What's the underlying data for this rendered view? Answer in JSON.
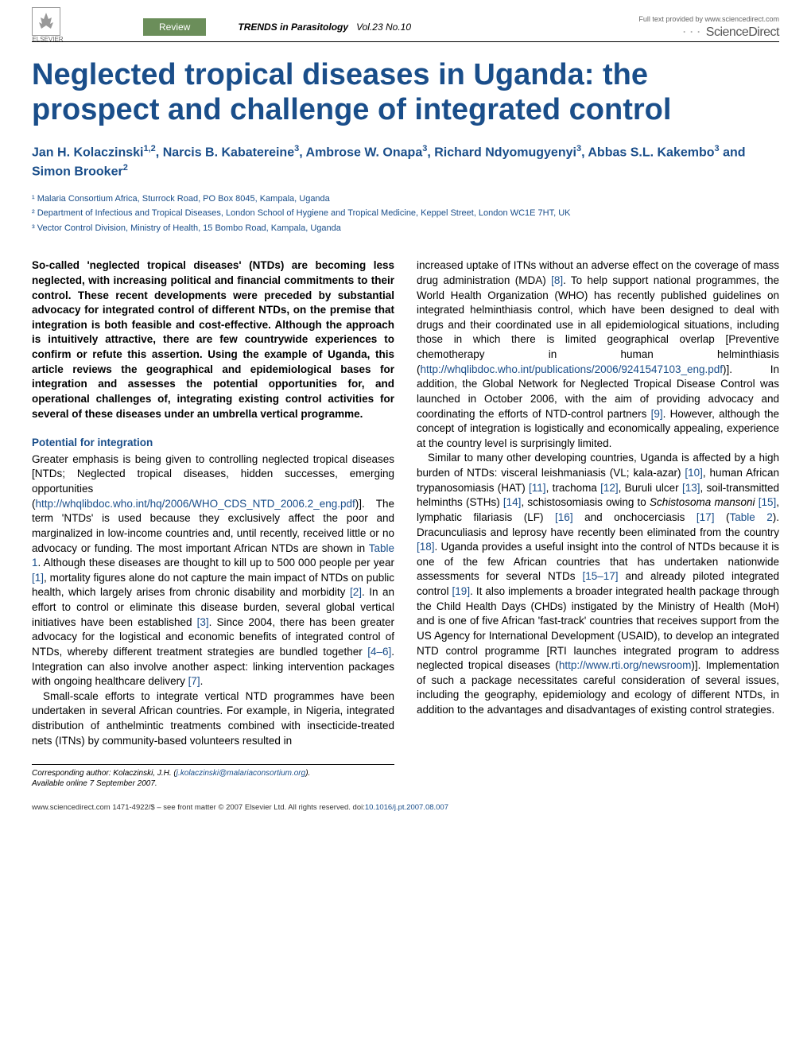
{
  "header": {
    "elsevier": "ELSEVIER",
    "review_label": "Review",
    "journal_name": "TRENDS in Parasitology",
    "journal_vol": "Vol.23 No.10",
    "sd_provided": "Full text provided by www.sciencedirect.com",
    "sd_name": "ScienceDirect"
  },
  "title": "Neglected tropical diseases in Uganda: the prospect and challenge of integrated control",
  "authors_html": "Jan H. Kolaczinski<sup>1,2</sup>, Narcis B. Kabatereine<sup>3</sup>, Ambrose W. Onapa<sup>3</sup>, Richard Ndyomugyenyi<sup>3</sup>, Abbas S.L. Kakembo<sup>3</sup> and Simon Brooker<sup>2</sup>",
  "affiliations": [
    "¹ Malaria Consortium Africa, Sturrock Road, PO Box 8045, Kampala, Uganda",
    "² Department of Infectious and Tropical Diseases, London School of Hygiene and Tropical Medicine, Keppel Street, London WC1E 7HT, UK",
    "³ Vector Control Division, Ministry of Health, 15 Bombo Road, Kampala, Uganda"
  ],
  "abstract": "So-called 'neglected tropical diseases' (NTDs) are becoming less neglected, with increasing political and financial commitments to their control. These recent developments were preceded by substantial advocacy for integrated control of different NTDs, on the premise that integration is both feasible and cost-effective. Although the approach is intuitively attractive, there are few countrywide experiences to confirm or refute this assertion. Using the example of Uganda, this article reviews the geographical and epidemiological bases for integration and assesses the potential opportunities for, and operational challenges of, integrating existing control activities for several of these diseases under an umbrella vertical programme.",
  "section1_head": "Potential for integration",
  "col1_p1_a": "Greater emphasis is being given to controlling neglected tropical diseases [NTDs; Neglected tropical diseases, hidden successes, emerging opportunities (",
  "col1_p1_link1": "http://whqlibdoc.who.int/hq/2006/WHO_CDS_NTD_2006.2_eng.pdf",
  "col1_p1_b": ")]. The term 'NTDs' is used because they exclusively affect the poor and marginalized in low-income countries and, until recently, received little or no advocacy or funding. The most important African NTDs are shown in ",
  "col1_p1_tab": "Table 1",
  "col1_p1_c": ". Although these diseases are thought to kill up to 500 000 people per year ",
  "col1_p1_r1": "[1]",
  "col1_p1_d": ", mortality figures alone do not capture the main impact of NTDs on public health, which largely arises from chronic disability and morbidity ",
  "col1_p1_r2": "[2]",
  "col1_p1_e": ". In an effort to control or eliminate this disease burden, several global vertical initiatives have been established ",
  "col1_p1_r3": "[3]",
  "col1_p1_f": ". Since 2004, there has been greater advocacy for the logistical and economic benefits of integrated control of NTDs, whereby different treatment strategies are bundled together ",
  "col1_p1_r4": "[4–6]",
  "col1_p1_g": ". Integration can also involve another aspect: linking intervention packages with ongoing healthcare delivery ",
  "col1_p1_r5": "[7]",
  "col1_p1_h": ".",
  "col1_p2": "Small-scale efforts to integrate vertical NTD programmes have been undertaken in several African countries. For example, in Nigeria, integrated distribution of anthelmintic treatments combined with insecticide-treated nets (ITNs) by community-based volunteers resulted in",
  "col2_p1_a": "increased uptake of ITNs without an adverse effect on the coverage of mass drug administration (MDA) ",
  "col2_p1_r1": "[8]",
  "col2_p1_b": ". To help support national programmes, the World Health Organization (WHO) has recently published guidelines on integrated helminthiasis control, which have been designed to deal with drugs and their coordinated use in all epidemiological situations, including those in which there is limited geographical overlap [Preventive chemotherapy in human helminthiasis (",
  "col2_p1_link1": "http://whqlibdoc.who.int/publications/2006/9241547103_eng.pdf",
  "col2_p1_c": ")]. In addition, the Global Network for Neglected Tropical Disease Control was launched in October 2006, with the aim of providing advocacy and coordinating the efforts of NTD-control partners ",
  "col2_p1_r2": "[9]",
  "col2_p1_d": ". However, although the concept of integration is logistically and economically appealing, experience at the country level is surprisingly limited.",
  "col2_p2_a": "Similar to many other developing countries, Uganda is affected by a high burden of NTDs: visceral leishmaniasis (VL; kala-azar) ",
  "col2_p2_r1": "[10]",
  "col2_p2_b": ", human African trypanosomiasis (HAT) ",
  "col2_p2_r2": "[11]",
  "col2_p2_c": ", trachoma ",
  "col2_p2_r3": "[12]",
  "col2_p2_d": ", Buruli ulcer ",
  "col2_p2_r4": "[13]",
  "col2_p2_e": ", soil-transmitted helminths (STHs) ",
  "col2_p2_r5": "[14]",
  "col2_p2_f": ", schistosomiasis owing to ",
  "col2_p2_ital": "Schistosoma mansoni",
  "col2_p2_g": " ",
  "col2_p2_r6": "[15]",
  "col2_p2_h": ", lymphatic filariasis (LF) ",
  "col2_p2_r7": "[16]",
  "col2_p2_i": " and onchocerciasis ",
  "col2_p2_r8": "[17]",
  "col2_p2_j": " (",
  "col2_p2_tab": "Table 2",
  "col2_p2_k": "). Dracunculiasis and leprosy have recently been eliminated from the country ",
  "col2_p2_r9": "[18]",
  "col2_p2_l": ". Uganda provides a useful insight into the control of NTDs because it is one of the few African countries that has undertaken nationwide assessments for several NTDs ",
  "col2_p2_r10": "[15–17]",
  "col2_p2_m": " and already piloted integrated control ",
  "col2_p2_r11": "[19]",
  "col2_p2_n": ". It also implements a broader integrated health package through the Child Health Days (CHDs) instigated by the Ministry of Health (MoH) and is one of five African 'fast-track' countries that receives support from the US Agency for International Development (USAID), to develop an integrated NTD control programme [RTI launches integrated program to address neglected tropical diseases (",
  "col2_p2_link1": "http://www.rti.org/newsroom",
  "col2_p2_o": ")]. Implementation of such a package necessitates careful consideration of several issues, including the geography, epidemiology and ecology of different NTDs, in addition to the advantages and disadvantages of existing control strategies.",
  "corr": {
    "label": "Corresponding author:",
    "name": "Kolaczinski, J.H. (",
    "email": "j.kolaczinski@malariaconsortium.org",
    "close": ").",
    "avail": "Available online 7 September 2007."
  },
  "footer": {
    "left": "www.sciencedirect.com   1471-4922/$ – see front matter © 2007 Elsevier Ltd. All rights reserved. doi:",
    "doi": "10.1016/j.pt.2007.08.007"
  },
  "colors": {
    "blue": "#1a4e8a",
    "green": "#6b8e5a"
  }
}
